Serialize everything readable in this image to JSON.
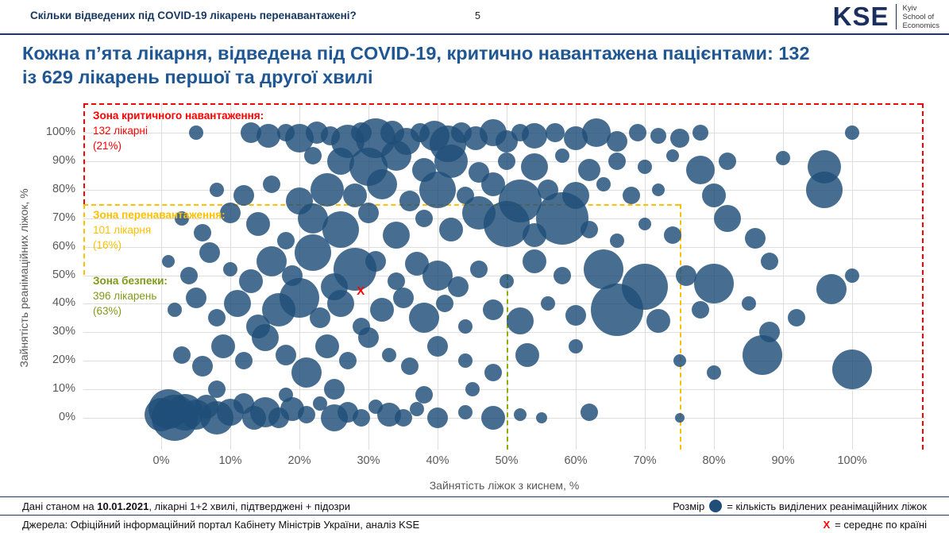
{
  "header": {
    "question": "Скільки відведених під COVID-19 лікарень перенавантажені?",
    "page_number": "5",
    "logo": {
      "mark": "KSE",
      "line1": "Kyiv",
      "line2": "School of",
      "line3": "Economics"
    }
  },
  "title": {
    "line1": "Кожна п’ята лікарня, відведена під COVID-19, критично навантажена пацієнтами: 132",
    "line2": "із 629 лікарень першої та другої хвилі"
  },
  "chart_data": {
    "type": "scatter",
    "subtype": "bubble",
    "title": "Кожна п’ята лікарня, відведена під COVID-19, критично навантажена пацієнтами: 132 із 629 лікарень першої та другої хвилі",
    "xlabel": "Зайнятість ліжок з киснем, %",
    "ylabel": "Зайнятість реанімаційних ліжок, %",
    "x_ticks": [
      "0%",
      "10%",
      "20%",
      "30%",
      "40%",
      "50%",
      "60%",
      "70%",
      "80%",
      "90%",
      "100%"
    ],
    "y_ticks": [
      "0%",
      "10%",
      "20%",
      "30%",
      "40%",
      "50%",
      "60%",
      "70%",
      "80%",
      "90%",
      "100%"
    ],
    "x_range": [
      0,
      100
    ],
    "y_range": [
      0,
      100
    ],
    "grid": true,
    "bubble_color": "#1F4E79",
    "bubble_opacity": 0.82,
    "zones": [
      {
        "label": "Зона критичного навантаження:",
        "count": "132 лікарні",
        "share": "(21%)",
        "color": "#FF0000",
        "threshold_pct": 75
      },
      {
        "label": "Зона перенавантаження:",
        "count": "101 лікарня",
        "share": "(16%)",
        "color": "#FFC000",
        "threshold_pct": 50
      },
      {
        "label": "Зона безпеки:",
        "count": "396 лікарень",
        "share": "(63%)",
        "color": "#7E9A18",
        "threshold_pct": 0
      }
    ],
    "mean": {
      "x": 29,
      "y": 44,
      "label": "X"
    },
    "bubbles": [
      [
        5,
        100,
        9
      ],
      [
        13,
        100,
        13
      ],
      [
        15.5,
        99,
        15
      ],
      [
        18,
        100,
        11
      ],
      [
        20,
        98,
        18
      ],
      [
        22.5,
        100,
        14
      ],
      [
        24.5,
        99,
        12
      ],
      [
        27,
        97,
        21
      ],
      [
        29,
        100,
        13
      ],
      [
        31,
        98,
        25
      ],
      [
        33.5,
        100,
        15
      ],
      [
        35.5,
        97,
        17
      ],
      [
        37.5,
        100,
        12
      ],
      [
        39.5,
        99,
        19
      ],
      [
        41.5,
        96,
        23
      ],
      [
        43.5,
        100,
        13
      ],
      [
        45.5,
        98,
        15
      ],
      [
        48,
        100,
        17
      ],
      [
        50,
        97,
        14
      ],
      [
        52,
        100,
        11
      ],
      [
        54,
        99,
        16
      ],
      [
        57,
        100,
        12
      ],
      [
        60,
        98,
        15
      ],
      [
        63,
        100,
        18
      ],
      [
        66,
        97,
        13
      ],
      [
        69,
        100,
        11
      ],
      [
        72,
        99,
        10
      ],
      [
        75,
        98,
        12
      ],
      [
        78,
        100,
        10
      ],
      [
        100,
        100,
        9
      ],
      [
        22,
        92,
        11
      ],
      [
        26,
        90,
        17
      ],
      [
        30,
        88,
        24
      ],
      [
        34,
        92,
        19
      ],
      [
        38,
        87,
        15
      ],
      [
        42,
        90,
        21
      ],
      [
        46,
        86,
        13
      ],
      [
        50,
        90,
        11
      ],
      [
        54,
        88,
        17
      ],
      [
        58,
        92,
        9
      ],
      [
        62,
        87,
        14
      ],
      [
        66,
        90,
        11
      ],
      [
        70,
        88,
        9
      ],
      [
        74,
        92,
        8
      ],
      [
        78,
        87,
        18
      ],
      [
        82,
        90,
        11
      ],
      [
        90,
        91,
        9
      ],
      [
        96,
        88,
        21
      ],
      [
        8,
        80,
        9
      ],
      [
        12,
        78,
        13
      ],
      [
        16,
        82,
        11
      ],
      [
        20,
        76,
        17
      ],
      [
        24,
        80,
        21
      ],
      [
        28,
        78,
        15
      ],
      [
        32,
        82,
        19
      ],
      [
        36,
        76,
        13
      ],
      [
        40,
        80,
        23
      ],
      [
        44,
        78,
        11
      ],
      [
        48,
        82,
        15
      ],
      [
        52,
        76,
        27
      ],
      [
        56,
        80,
        13
      ],
      [
        60,
        78,
        17
      ],
      [
        64,
        82,
        9
      ],
      [
        68,
        78,
        11
      ],
      [
        72,
        80,
        8
      ],
      [
        80,
        78,
        15
      ],
      [
        96,
        80,
        23
      ],
      [
        3,
        70,
        9
      ],
      [
        6,
        65,
        11
      ],
      [
        10,
        72,
        13
      ],
      [
        14,
        68,
        15
      ],
      [
        18,
        62,
        11
      ],
      [
        22,
        70,
        19
      ],
      [
        26,
        66,
        23
      ],
      [
        30,
        72,
        13
      ],
      [
        34,
        64,
        17
      ],
      [
        38,
        70,
        11
      ],
      [
        42,
        66,
        15
      ],
      [
        46,
        72,
        21
      ],
      [
        50,
        68,
        29
      ],
      [
        54,
        64,
        15
      ],
      [
        58,
        70,
        33
      ],
      [
        62,
        66,
        11
      ],
      [
        66,
        62,
        9
      ],
      [
        70,
        68,
        8
      ],
      [
        74,
        64,
        11
      ],
      [
        82,
        70,
        17
      ],
      [
        86,
        63,
        13
      ],
      [
        1,
        55,
        8
      ],
      [
        4,
        50,
        11
      ],
      [
        7,
        58,
        13
      ],
      [
        10,
        52,
        9
      ],
      [
        13,
        48,
        15
      ],
      [
        16,
        55,
        19
      ],
      [
        19,
        50,
        13
      ],
      [
        22,
        58,
        23
      ],
      [
        25,
        46,
        17
      ],
      [
        28,
        52,
        27
      ],
      [
        31,
        55,
        13
      ],
      [
        34,
        48,
        11
      ],
      [
        37,
        54,
        15
      ],
      [
        40,
        50,
        19
      ],
      [
        43,
        46,
        13
      ],
      [
        46,
        52,
        11
      ],
      [
        50,
        48,
        9
      ],
      [
        54,
        55,
        15
      ],
      [
        58,
        50,
        11
      ],
      [
        64,
        52,
        25
      ],
      [
        70,
        46,
        29
      ],
      [
        76,
        50,
        13
      ],
      [
        80,
        47,
        25
      ],
      [
        88,
        55,
        11
      ],
      [
        97,
        45,
        19
      ],
      [
        100,
        50,
        9
      ],
      [
        2,
        38,
        9
      ],
      [
        5,
        42,
        13
      ],
      [
        8,
        35,
        11
      ],
      [
        11,
        40,
        17
      ],
      [
        14,
        32,
        15
      ],
      [
        17,
        38,
        21
      ],
      [
        20,
        42,
        25
      ],
      [
        23,
        35,
        13
      ],
      [
        26,
        40,
        17
      ],
      [
        29,
        32,
        11
      ],
      [
        32,
        38,
        15
      ],
      [
        35,
        42,
        13
      ],
      [
        38,
        35,
        19
      ],
      [
        41,
        40,
        11
      ],
      [
        44,
        32,
        9
      ],
      [
        48,
        38,
        13
      ],
      [
        52,
        34,
        17
      ],
      [
        56,
        40,
        9
      ],
      [
        60,
        36,
        13
      ],
      [
        66,
        38,
        33
      ],
      [
        72,
        34,
        15
      ],
      [
        78,
        38,
        11
      ],
      [
        85,
        40,
        9
      ],
      [
        88,
        30,
        13
      ],
      [
        92,
        35,
        11
      ],
      [
        3,
        22,
        11
      ],
      [
        6,
        18,
        13
      ],
      [
        9,
        25,
        15
      ],
      [
        12,
        20,
        11
      ],
      [
        15,
        28,
        17
      ],
      [
        18,
        22,
        13
      ],
      [
        21,
        16,
        19
      ],
      [
        24,
        25,
        15
      ],
      [
        27,
        20,
        11
      ],
      [
        30,
        28,
        13
      ],
      [
        33,
        22,
        9
      ],
      [
        36,
        18,
        11
      ],
      [
        40,
        25,
        13
      ],
      [
        44,
        20,
        9
      ],
      [
        48,
        16,
        11
      ],
      [
        53,
        22,
        15
      ],
      [
        60,
        25,
        9
      ],
      [
        75,
        20,
        8
      ],
      [
        80,
        16,
        9
      ],
      [
        87,
        22,
        25
      ],
      [
        100,
        17,
        25
      ],
      [
        0,
        1,
        21
      ],
      [
        1,
        3,
        25
      ],
      [
        2,
        0,
        29
      ],
      [
        3.5,
        2,
        23
      ],
      [
        5,
        1,
        19
      ],
      [
        6.5,
        4,
        15
      ],
      [
        8,
        0,
        21
      ],
      [
        10,
        2,
        17
      ],
      [
        12,
        5,
        13
      ],
      [
        13.5,
        0,
        15
      ],
      [
        15,
        2,
        19
      ],
      [
        17,
        0,
        13
      ],
      [
        19,
        3,
        15
      ],
      [
        21,
        1,
        11
      ],
      [
        23,
        5,
        9
      ],
      [
        25,
        0,
        17
      ],
      [
        27,
        2,
        13
      ],
      [
        29,
        0,
        11
      ],
      [
        31,
        4,
        9
      ],
      [
        33,
        1,
        15
      ],
      [
        35,
        0,
        11
      ],
      [
        37,
        3,
        9
      ],
      [
        40,
        0,
        13
      ],
      [
        44,
        2,
        9
      ],
      [
        48,
        0,
        15
      ],
      [
        52,
        1,
        8
      ],
      [
        55,
        0,
        7
      ],
      [
        62,
        2,
        11
      ],
      [
        75,
        0,
        6
      ],
      [
        45,
        10,
        9
      ],
      [
        38,
        8,
        11
      ],
      [
        25,
        10,
        13
      ],
      [
        18,
        8,
        9
      ],
      [
        8,
        10,
        11
      ]
    ]
  },
  "footer": {
    "note1_prefix": "Дані станом на ",
    "note1_date": "10.01.2021",
    "note1_suffix": ", лікарні 1+2 хвилі, підтверджені + підозри",
    "note2": "Джерела: Офіційний інформаційний портал Кабінету Міністрів України, аналіз KSE"
  },
  "legend": {
    "size_prefix": "Розмір",
    "size_suffix": "= кількість виділених  реанімаційних ліжок",
    "mean_mark": "X",
    "mean_suffix": "= середнє по країні"
  }
}
